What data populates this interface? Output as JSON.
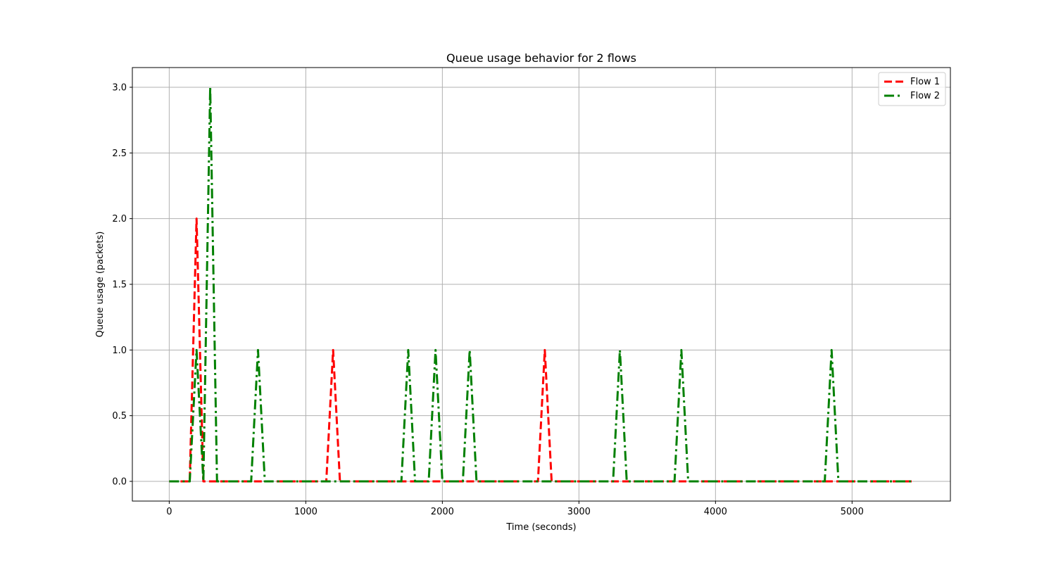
{
  "chart_data": {
    "type": "line",
    "title": "Queue usage behavior for 2 flows",
    "xlabel": "Time (seconds)",
    "ylabel": "Queue usage (packets)",
    "xlim": [
      -270,
      5720
    ],
    "ylim": [
      -0.15,
      3.15
    ],
    "xticks": [
      0,
      1000,
      2000,
      3000,
      4000,
      5000
    ],
    "yticks": [
      0.0,
      0.5,
      1.0,
      1.5,
      2.0,
      2.5,
      3.0
    ],
    "xtick_labels": [
      "0",
      "1000",
      "2000",
      "3000",
      "4000",
      "5000"
    ],
    "ytick_labels": [
      "0.0",
      "0.5",
      "1.0",
      "1.5",
      "2.0",
      "2.5",
      "3.0"
    ],
    "grid": true,
    "legend_position": "top-right",
    "series": [
      {
        "name": "Flow 1",
        "color": "#ff0000",
        "linestyle": "dashed",
        "points": [
          [
            0,
            0
          ],
          [
            150,
            0
          ],
          [
            200,
            2
          ],
          [
            250,
            0
          ],
          [
            1150,
            0
          ],
          [
            1200,
            1
          ],
          [
            1250,
            0
          ],
          [
            2700,
            0
          ],
          [
            2750,
            1
          ],
          [
            2800,
            0
          ],
          [
            5450,
            0
          ]
        ]
      },
      {
        "name": "Flow 2",
        "color": "#008000",
        "linestyle": "dashdot",
        "points": [
          [
            0,
            0
          ],
          [
            150,
            0
          ],
          [
            200,
            1
          ],
          [
            250,
            0
          ],
          [
            300,
            3
          ],
          [
            350,
            0
          ],
          [
            600,
            0
          ],
          [
            650,
            1
          ],
          [
            700,
            0
          ],
          [
            1700,
            0
          ],
          [
            1750,
            1
          ],
          [
            1800,
            0
          ],
          [
            1900,
            0
          ],
          [
            1950,
            1
          ],
          [
            2000,
            0
          ],
          [
            2150,
            0
          ],
          [
            2200,
            1
          ],
          [
            2250,
            0
          ],
          [
            3250,
            0
          ],
          [
            3300,
            1
          ],
          [
            3350,
            0
          ],
          [
            3700,
            0
          ],
          [
            3750,
            1
          ],
          [
            3800,
            0
          ],
          [
            4800,
            0
          ],
          [
            4850,
            1
          ],
          [
            4900,
            0
          ],
          [
            5450,
            0
          ]
        ]
      }
    ]
  }
}
